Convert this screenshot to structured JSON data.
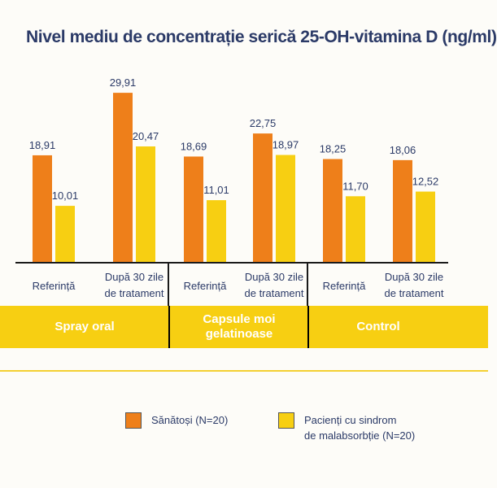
{
  "chart_data": {
    "type": "bar",
    "title": "Nivel mediu de concentrație serică 25-OH-vitamina D (ng/ml)",
    "groups": [
      "Spray oral",
      "Capsule moi gelatinoase",
      "Control"
    ],
    "group_label_lines": [
      [
        "Spray oral"
      ],
      [
        "Capsule moi",
        "gelatinoase"
      ],
      [
        "Control"
      ]
    ],
    "categories": [
      "Referință",
      "După 30 zile de tratament",
      "Referință",
      "După 30 zile de tratament",
      "Referință",
      "După 30 zile de tratament"
    ],
    "category_label_lines": [
      [
        "Referință"
      ],
      [
        "După 30 zile",
        "de tratament"
      ],
      [
        "Referință"
      ],
      [
        "După 30 zile",
        "de tratament"
      ],
      [
        "Referință"
      ],
      [
        "După 30 zile",
        "de tratament"
      ]
    ],
    "series": [
      {
        "name": "Sănătoși (N=20)",
        "color": "#ee7f1a",
        "values": [
          18.91,
          29.91,
          18.69,
          22.75,
          18.25,
          18.06
        ],
        "labels": [
          "18,91",
          "29,91",
          "18,69",
          "22,75",
          "18,25",
          "18,06"
        ]
      },
      {
        "name": "Pacienți cu sindrom de malabsorbție (N=20)",
        "color": "#f7cf12",
        "values": [
          10.01,
          20.47,
          11.01,
          18.97,
          11.7,
          12.52
        ],
        "labels": [
          "10,01",
          "20,47",
          "11,01",
          "18,97",
          "11,70",
          "12,52"
        ]
      }
    ],
    "ylim": [
      0,
      35
    ],
    "xlabel": "",
    "ylabel": "",
    "grid": false,
    "legend_position": "bottom"
  },
  "legend": {
    "item1": "Sănătoși (N=20)",
    "item2_line1": "Pacienți cu sindrom",
    "item2_line2": "de malabsorbție (N=20)"
  }
}
